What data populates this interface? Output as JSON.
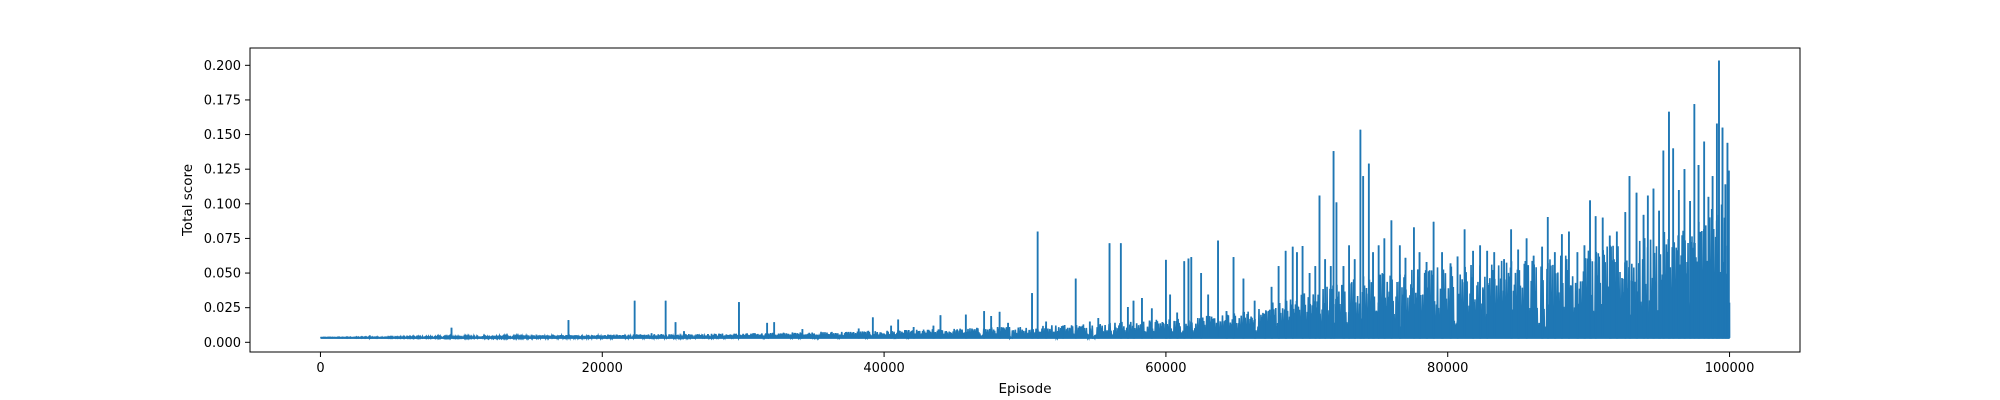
{
  "chart_data": {
    "type": "line",
    "title": "",
    "xlabel": "Episode",
    "ylabel": "Total score",
    "xlim": [
      -5000,
      105000
    ],
    "ylim": [
      -0.007,
      0.2125
    ],
    "x_ticks": [
      0,
      20000,
      40000,
      60000,
      80000,
      100000
    ],
    "x_tick_labels": [
      "0",
      "20000",
      "40000",
      "60000",
      "80000",
      "100000"
    ],
    "y_ticks": [
      0.0,
      0.025,
      0.05,
      0.075,
      0.1,
      0.125,
      0.15,
      0.175,
      0.2
    ],
    "y_tick_labels": [
      "0.000",
      "0.025",
      "0.050",
      "0.075",
      "0.100",
      "0.125",
      "0.150",
      "0.175",
      "0.200"
    ],
    "grid": false,
    "baseline": 0.0032,
    "series": [
      {
        "color": "#1f77b4",
        "x_range": [
          0,
          100000
        ],
        "spikes": [
          [
            3500,
            0.005
          ],
          [
            8200,
            0.0045
          ],
          [
            9300,
            0.0105
          ],
          [
            11500,
            0.0045
          ],
          [
            14000,
            0.0045
          ],
          [
            15500,
            0.005
          ],
          [
            16500,
            0.0055
          ],
          [
            17600,
            0.016
          ],
          [
            19500,
            0.0045
          ],
          [
            21000,
            0.0055
          ],
          [
            22300,
            0.03
          ],
          [
            23500,
            0.0065
          ],
          [
            24500,
            0.03
          ],
          [
            25200,
            0.0145
          ],
          [
            25800,
            0.008
          ],
          [
            27500,
            0.006
          ],
          [
            29700,
            0.029
          ],
          [
            31700,
            0.014
          ],
          [
            32200,
            0.0145
          ],
          [
            34200,
            0.0095
          ],
          [
            35000,
            0.006
          ],
          [
            36400,
            0.006
          ],
          [
            38200,
            0.01
          ],
          [
            39200,
            0.018
          ],
          [
            40500,
            0.012
          ],
          [
            41000,
            0.0165
          ],
          [
            42100,
            0.011
          ],
          [
            43500,
            0.012
          ],
          [
            44000,
            0.0195
          ],
          [
            45800,
            0.02
          ],
          [
            47100,
            0.0225
          ],
          [
            47600,
            0.019
          ],
          [
            48200,
            0.022
          ],
          [
            48800,
            0.014
          ],
          [
            50500,
            0.0355
          ],
          [
            50900,
            0.08
          ],
          [
            51500,
            0.015
          ],
          [
            52700,
            0.012
          ],
          [
            53600,
            0.046
          ],
          [
            54600,
            0.015
          ],
          [
            55200,
            0.0175
          ],
          [
            56000,
            0.0715
          ],
          [
            56800,
            0.0715
          ],
          [
            57300,
            0.0255
          ],
          [
            57700,
            0.03
          ],
          [
            58300,
            0.032
          ],
          [
            59000,
            0.0245
          ],
          [
            60000,
            0.0595
          ],
          [
            60300,
            0.0345
          ],
          [
            60800,
            0.0215
          ],
          [
            61300,
            0.0585
          ],
          [
            61600,
            0.0605
          ],
          [
            61800,
            0.0615
          ],
          [
            62500,
            0.05
          ],
          [
            63000,
            0.0345
          ],
          [
            63700,
            0.0735
          ],
          [
            64300,
            0.0225
          ],
          [
            64800,
            0.0615
          ],
          [
            65500,
            0.046
          ],
          [
            66300,
            0.03
          ],
          [
            67000,
            0.0205
          ],
          [
            67500,
            0.04
          ],
          [
            68000,
            0.055
          ],
          [
            68500,
            0.066
          ],
          [
            69000,
            0.069
          ],
          [
            69300,
            0.065
          ],
          [
            69700,
            0.0695
          ],
          [
            70200,
            0.05
          ],
          [
            70600,
            0.055
          ],
          [
            70900,
            0.106
          ],
          [
            71300,
            0.06
          ],
          [
            71700,
            0.055
          ],
          [
            71900,
            0.138
          ],
          [
            72100,
            0.101
          ],
          [
            72600,
            0.055
          ],
          [
            73000,
            0.07
          ],
          [
            73400,
            0.06
          ],
          [
            73800,
            0.1535
          ],
          [
            74000,
            0.12
          ],
          [
            74400,
            0.129
          ],
          [
            74700,
            0.065
          ],
          [
            75100,
            0.07
          ],
          [
            75500,
            0.075
          ],
          [
            76000,
            0.088
          ],
          [
            76600,
            0.07
          ],
          [
            77000,
            0.061
          ],
          [
            77600,
            0.083
          ],
          [
            78000,
            0.065
          ],
          [
            78500,
            0.058
          ],
          [
            79000,
            0.087
          ],
          [
            79600,
            0.065
          ],
          [
            80200,
            0.057
          ],
          [
            80700,
            0.062
          ],
          [
            81200,
            0.0815
          ],
          [
            81800,
            0.066
          ],
          [
            82300,
            0.07
          ],
          [
            82800,
            0.066
          ],
          [
            83300,
            0.065
          ],
          [
            84000,
            0.06
          ],
          [
            84500,
            0.0815
          ],
          [
            85000,
            0.067
          ],
          [
            85600,
            0.075
          ],
          [
            86100,
            0.0625
          ],
          [
            86700,
            0.069
          ],
          [
            87100,
            0.0905
          ],
          [
            87600,
            0.065
          ],
          [
            88100,
            0.078
          ],
          [
            88600,
            0.08
          ],
          [
            89200,
            0.065
          ],
          [
            89700,
            0.07
          ],
          [
            90100,
            0.1025
          ],
          [
            90500,
            0.091
          ],
          [
            91000,
            0.09
          ],
          [
            91500,
            0.077
          ],
          [
            92000,
            0.08
          ],
          [
            92600,
            0.094
          ],
          [
            92900,
            0.12
          ],
          [
            93400,
            0.108
          ],
          [
            93900,
            0.092
          ],
          [
            94200,
            0.106
          ],
          [
            94600,
            0.111
          ],
          [
            95000,
            0.095
          ],
          [
            95300,
            0.1385
          ],
          [
            95700,
            0.1665
          ],
          [
            96000,
            0.14
          ],
          [
            96400,
            0.11
          ],
          [
            96800,
            0.125
          ],
          [
            97200,
            0.102
          ],
          [
            97500,
            0.172
          ],
          [
            97800,
            0.128
          ],
          [
            98200,
            0.145
          ],
          [
            98500,
            0.105
          ],
          [
            98800,
            0.12
          ],
          [
            99100,
            0.158
          ],
          [
            99250,
            0.2035
          ],
          [
            99500,
            0.155
          ],
          [
            99700,
            0.114
          ],
          [
            99850,
            0.144
          ],
          [
            99950,
            0.124
          ]
        ],
        "envelope": [
          [
            0,
            0.0035
          ],
          [
            10000,
            0.0045
          ],
          [
            20000,
            0.0055
          ],
          [
            30000,
            0.0065
          ],
          [
            40000,
            0.0085
          ],
          [
            45000,
            0.01
          ],
          [
            50000,
            0.012
          ],
          [
            55000,
            0.014
          ],
          [
            60000,
            0.017
          ],
          [
            64000,
            0.02
          ],
          [
            66500,
            0.024
          ],
          [
            67500,
            0.03
          ],
          [
            70000,
            0.037
          ],
          [
            73000,
            0.047
          ],
          [
            76000,
            0.052
          ],
          [
            80000,
            0.056
          ],
          [
            85000,
            0.061
          ],
          [
            90000,
            0.067
          ],
          [
            95000,
            0.078
          ],
          [
            99000,
            0.098
          ],
          [
            100000,
            0.11
          ]
        ]
      }
    ]
  }
}
